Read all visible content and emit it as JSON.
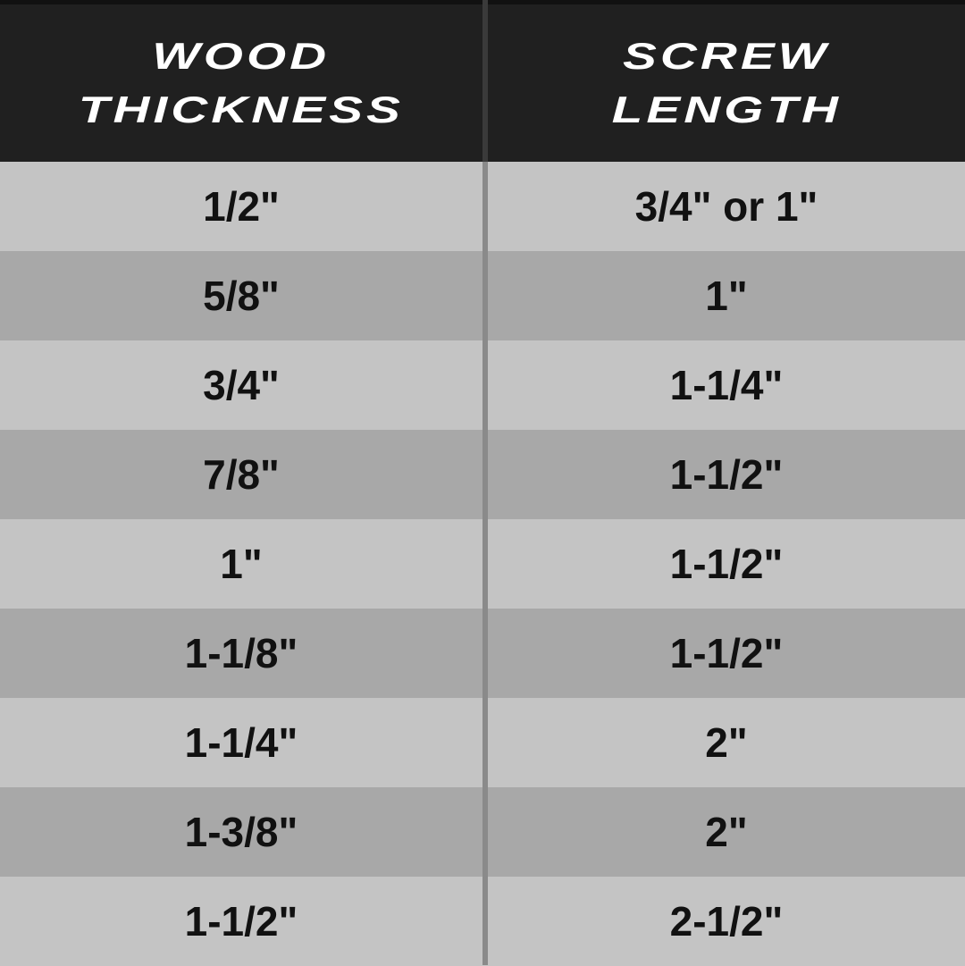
{
  "table": {
    "headers": [
      {
        "line1": "WOOD",
        "line2": "THICKNESS"
      },
      {
        "line1": "SCREW",
        "line2": "LENGTH"
      }
    ],
    "rows": [
      [
        "1/2\"",
        "3/4\" or 1\""
      ],
      [
        "5/8\"",
        "1\""
      ],
      [
        "3/4\"",
        "1-1/4\""
      ],
      [
        "7/8\"",
        "1-1/2\""
      ],
      [
        "1\"",
        "1-1/2\""
      ],
      [
        "1-1/8\"",
        "1-1/2\""
      ],
      [
        "1-1/4\"",
        "2\""
      ],
      [
        "1-3/8\"",
        "2\""
      ],
      [
        "1-1/2\"",
        "2-1/2\""
      ]
    ]
  },
  "colors": {
    "header_bg": "#202020",
    "row_light": "#c4c4c4",
    "row_dark": "#a8a8a8"
  }
}
